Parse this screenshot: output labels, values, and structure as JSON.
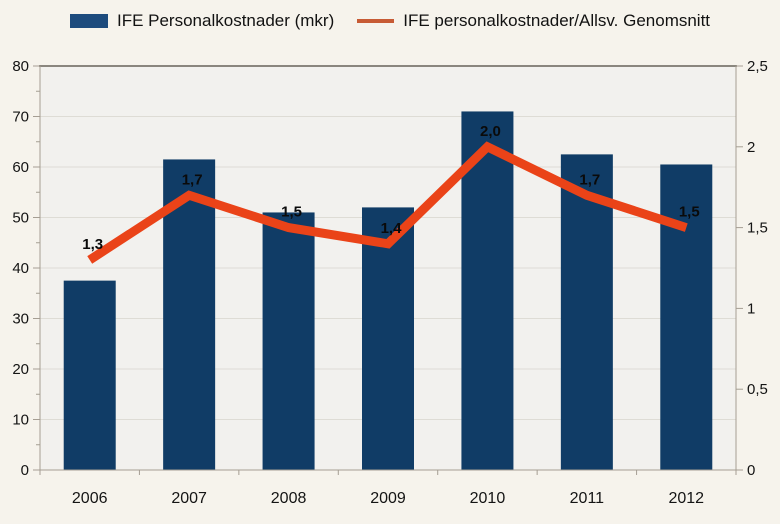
{
  "legend": {
    "bars_label": "IFE Personalkostnader (mkr)",
    "line_label": "IFE personalkostnader/Allsv. Genomsnitt"
  },
  "colors": {
    "outer_bg": "#f6f3ec",
    "plot_bg": "#f2f1ee",
    "grid": "#dedcd5",
    "axis": "#a59e93",
    "plot_top_border": "#8a867e",
    "bar": "#103c66",
    "line": "#ea4318",
    "legend_bar_swatch": "#1d4b7d",
    "legend_line_swatch": "#c75b35",
    "text": "#141414",
    "data_label": "#0a0a0a"
  },
  "chart_data": {
    "type": "bar+line combo",
    "categories": [
      "2006",
      "2007",
      "2008",
      "2009",
      "2010",
      "2011",
      "2012"
    ],
    "series": [
      {
        "name": "IFE Personalkostnader (mkr)",
        "type": "bar",
        "axis": "left",
        "values": [
          37.5,
          61.5,
          51,
          52,
          71,
          62.5,
          60.5
        ]
      },
      {
        "name": "IFE personalkostnader/Allsv. Genomsnitt",
        "type": "line",
        "axis": "right",
        "values": [
          1.3,
          1.7,
          1.5,
          1.4,
          2.0,
          1.7,
          1.5
        ],
        "point_labels": [
          "1,3",
          "1,7",
          "1,5",
          "1,4",
          "2,0",
          "1,7",
          "1,5"
        ]
      }
    ],
    "left_axis": {
      "min": 0,
      "max": 80,
      "step": 10,
      "minor_step": 5,
      "tick_labels": [
        "80",
        "70",
        "60",
        "50",
        "40",
        "30",
        "20",
        "10",
        "0"
      ]
    },
    "right_axis": {
      "min": 0,
      "max": 2.5,
      "step": 0.5,
      "tick_labels": [
        "2,5",
        "2",
        "1,5",
        "1",
        "0,5",
        "0"
      ]
    },
    "grid": true,
    "legend_position": "top"
  }
}
